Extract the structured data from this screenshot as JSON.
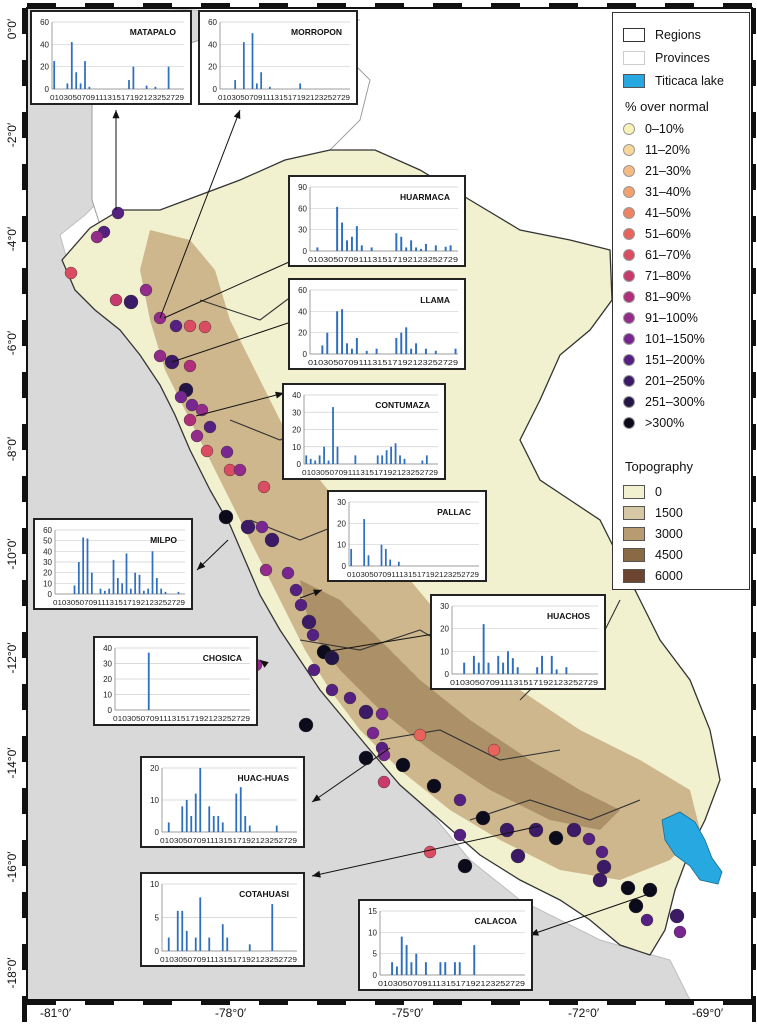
{
  "legend": {
    "regions": "Regions",
    "provinces": "Provinces",
    "lake": "Titicaca lake",
    "percent_title": "% over normal",
    "classes": [
      {
        "label": "0–10%",
        "color": "#f7f2b8"
      },
      {
        "label": "11–20%",
        "color": "#f8d89a"
      },
      {
        "label": "21–30%",
        "color": "#f5bb82"
      },
      {
        "label": "31–40%",
        "color": "#f2a070"
      },
      {
        "label": "41–50%",
        "color": "#ee8262"
      },
      {
        "label": "51–60%",
        "color": "#e7635c"
      },
      {
        "label": "61–70%",
        "color": "#d94c61"
      },
      {
        "label": "71–80%",
        "color": "#c83a6b"
      },
      {
        "label": "81–90%",
        "color": "#b02f7a"
      },
      {
        "label": "91–100%",
        "color": "#932b8a"
      },
      {
        "label": "101–150%",
        "color": "#77278f"
      },
      {
        "label": "151–200%",
        "color": "#55207f"
      },
      {
        "label": "201–250%",
        "color": "#3c1a66"
      },
      {
        "label": "251–300%",
        "color": "#231546"
      },
      {
        "label": ">300%",
        "color": "#0c0b1c"
      }
    ],
    "topo_title": "Topography",
    "topo": [
      {
        "label": "0",
        "color": "#f2f1cf"
      },
      {
        "label": "1500",
        "color": "#d6c8a5"
      },
      {
        "label": "3000",
        "color": "#b89b70"
      },
      {
        "label": "4500",
        "color": "#8a6a44"
      },
      {
        "label": "6000",
        "color": "#6b4530"
      }
    ]
  },
  "axes": {
    "lat_labels": [
      "0°0′",
      "-2°0′",
      "-4°0′",
      "-6°0′",
      "-8°0′",
      "-10°0′",
      "-12°0′",
      "-14°0′",
      "-16°0′",
      "-18°0′"
    ],
    "lon_labels": [
      "-81°0′",
      "-78°0′",
      "-75°0′",
      "-72°0′",
      "-69°0′"
    ]
  },
  "chart_data": [
    {
      "type": "bar",
      "title": "MATAPALO",
      "yticks": [
        0,
        20,
        40,
        60
      ],
      "ylim": [
        0,
        60
      ],
      "xticks": [
        "01",
        "03",
        "05",
        "07",
        "09",
        "11",
        "13",
        "15",
        "17",
        "19",
        "21",
        "23",
        "25",
        "27",
        "29"
      ],
      "values": [
        25,
        0,
        0,
        5,
        42,
        15,
        5,
        25,
        2,
        0,
        0,
        0,
        0,
        0,
        0,
        0,
        0,
        8,
        20,
        0,
        0,
        3,
        0,
        2,
        0,
        0,
        20,
        0,
        0,
        0
      ]
    },
    {
      "type": "bar",
      "title": "MORROPON",
      "yticks": [
        0,
        20,
        40,
        60
      ],
      "ylim": [
        0,
        60
      ],
      "xticks": [
        "01",
        "03",
        "05",
        "07",
        "09",
        "11",
        "13",
        "15",
        "17",
        "19",
        "21",
        "23",
        "25",
        "27",
        "29"
      ],
      "values": [
        0,
        0,
        0,
        8,
        0,
        42,
        0,
        50,
        5,
        15,
        0,
        2,
        0,
        0,
        0,
        0,
        0,
        0,
        5,
        0,
        0,
        0,
        0,
        0,
        0,
        0,
        0,
        0,
        0,
        0
      ]
    },
    {
      "type": "bar",
      "title": "HUARMACA",
      "yticks": [
        0,
        30,
        60,
        90
      ],
      "ylim": [
        0,
        90
      ],
      "xticks": [
        "01",
        "03",
        "05",
        "07",
        "09",
        "11",
        "13",
        "15",
        "17",
        "19",
        "21",
        "23",
        "25",
        "27",
        "29"
      ],
      "values": [
        0,
        5,
        0,
        0,
        0,
        62,
        40,
        15,
        20,
        35,
        8,
        0,
        5,
        0,
        0,
        0,
        0,
        25,
        20,
        5,
        15,
        5,
        3,
        10,
        0,
        8,
        0,
        6,
        8,
        0
      ]
    },
    {
      "type": "bar",
      "title": "LLAMA",
      "yticks": [
        0,
        20,
        40,
        60
      ],
      "ylim": [
        0,
        60
      ],
      "xticks": [
        "01",
        "03",
        "05",
        "07",
        "09",
        "11",
        "13",
        "15",
        "17",
        "19",
        "21",
        "23",
        "25",
        "27",
        "29"
      ],
      "values": [
        0,
        0,
        8,
        20,
        0,
        40,
        42,
        10,
        5,
        15,
        0,
        3,
        0,
        5,
        0,
        0,
        0,
        15,
        20,
        25,
        5,
        10,
        0,
        5,
        0,
        3,
        0,
        0,
        0,
        5
      ]
    },
    {
      "type": "bar",
      "title": "CONTUMAZA",
      "yticks": [
        0,
        10,
        20,
        30,
        40
      ],
      "ylim": [
        0,
        40
      ],
      "xticks": [
        "01",
        "03",
        "05",
        "07",
        "09",
        "11",
        "13",
        "15",
        "17",
        "19",
        "21",
        "23",
        "25",
        "27",
        "29"
      ],
      "values": [
        5,
        3,
        2,
        5,
        10,
        2,
        33,
        10,
        0,
        0,
        0,
        5,
        0,
        0,
        0,
        0,
        5,
        5,
        8,
        10,
        12,
        5,
        3,
        0,
        0,
        0,
        2,
        5,
        0,
        0
      ]
    },
    {
      "type": "bar",
      "title": "PALLAC",
      "yticks": [
        0,
        10,
        20,
        30
      ],
      "ylim": [
        0,
        30
      ],
      "xticks": [
        "01",
        "03",
        "05",
        "07",
        "09",
        "11",
        "13",
        "15",
        "17",
        "19",
        "21",
        "23",
        "25",
        "27",
        "29"
      ],
      "values": [
        8,
        0,
        0,
        22,
        5,
        0,
        0,
        10,
        8,
        3,
        0,
        2,
        0,
        0,
        0,
        0,
        0,
        0,
        0,
        0,
        0,
        0,
        0,
        0,
        0,
        0,
        0,
        0,
        0,
        0
      ]
    },
    {
      "type": "bar",
      "title": "MILPO",
      "yticks": [
        0,
        10,
        20,
        30,
        40,
        50,
        60
      ],
      "ylim": [
        0,
        60
      ],
      "xticks": [
        "01",
        "03",
        "05",
        "07",
        "09",
        "11",
        "13",
        "15",
        "17",
        "19",
        "21",
        "23",
        "25",
        "27",
        "29"
      ],
      "values": [
        0,
        0,
        0,
        0,
        8,
        30,
        53,
        52,
        20,
        0,
        5,
        3,
        5,
        32,
        15,
        10,
        38,
        5,
        20,
        18,
        3,
        5,
        40,
        15,
        5,
        2,
        0,
        0,
        2,
        0
      ]
    },
    {
      "type": "bar",
      "title": "CHOSICA",
      "yticks": [
        0,
        10,
        20,
        30,
        40
      ],
      "ylim": [
        0,
        40
      ],
      "xticks": [
        "01",
        "03",
        "05",
        "07",
        "09",
        "11",
        "13",
        "15",
        "17",
        "19",
        "21",
        "23",
        "25",
        "27",
        "29"
      ],
      "values": [
        0,
        0,
        0,
        0,
        0,
        0,
        0,
        37,
        0,
        0,
        0,
        0,
        0,
        0,
        0,
        0,
        0,
        0,
        0,
        0,
        0,
        0,
        0,
        0,
        0,
        0,
        0,
        0,
        0,
        0
      ]
    },
    {
      "type": "bar",
      "title": "HUACHOS",
      "yticks": [
        0,
        10,
        20,
        30
      ],
      "ylim": [
        0,
        30
      ],
      "xticks": [
        "01",
        "03",
        "05",
        "07",
        "09",
        "11",
        "13",
        "15",
        "17",
        "19",
        "21",
        "23",
        "25",
        "27",
        "29"
      ],
      "values": [
        0,
        0,
        5,
        0,
        8,
        5,
        22,
        5,
        0,
        8,
        5,
        10,
        7,
        3,
        0,
        0,
        0,
        3,
        8,
        0,
        8,
        2,
        0,
        3,
        0,
        0,
        0,
        0,
        0,
        0
      ]
    },
    {
      "type": "bar",
      "title": "HUAC-HUAS",
      "yticks": [
        0,
        10,
        20
      ],
      "ylim": [
        0,
        20
      ],
      "xticks": [
        "01",
        "03",
        "05",
        "07",
        "09",
        "11",
        "13",
        "15",
        "17",
        "19",
        "21",
        "23",
        "25",
        "27",
        "29"
      ],
      "values": [
        0,
        3,
        0,
        0,
        8,
        10,
        5,
        12,
        20,
        0,
        8,
        5,
        5,
        3,
        0,
        0,
        12,
        14,
        5,
        2,
        0,
        0,
        0,
        0,
        0,
        2,
        0,
        0,
        0,
        0
      ]
    },
    {
      "type": "bar",
      "title": "COTAHUASI",
      "yticks": [
        0,
        5,
        10
      ],
      "ylim": [
        0,
        10
      ],
      "xticks": [
        "01",
        "03",
        "05",
        "07",
        "09",
        "11",
        "13",
        "15",
        "17",
        "19",
        "21",
        "23",
        "25",
        "27",
        "29"
      ],
      "values": [
        0,
        2,
        0,
        6,
        6,
        3,
        0,
        2,
        8,
        0,
        2,
        0,
        0,
        4,
        2,
        0,
        0,
        0,
        0,
        1,
        0,
        0,
        0,
        0,
        7,
        0,
        0,
        0,
        0,
        0
      ]
    },
    {
      "type": "bar",
      "title": "CALACOA",
      "yticks": [
        0,
        5,
        10,
        15
      ],
      "ylim": [
        0,
        15
      ],
      "xticks": [
        "01",
        "03",
        "05",
        "07",
        "09",
        "11",
        "13",
        "15",
        "17",
        "19",
        "21",
        "23",
        "25",
        "27",
        "29"
      ],
      "values": [
        0,
        0,
        3,
        2,
        9,
        7,
        3,
        5,
        0,
        3,
        0,
        0,
        3,
        3,
        0,
        3,
        3,
        0,
        0,
        7,
        0,
        0,
        0,
        0,
        0,
        0,
        0,
        0,
        0,
        0
      ]
    }
  ]
}
